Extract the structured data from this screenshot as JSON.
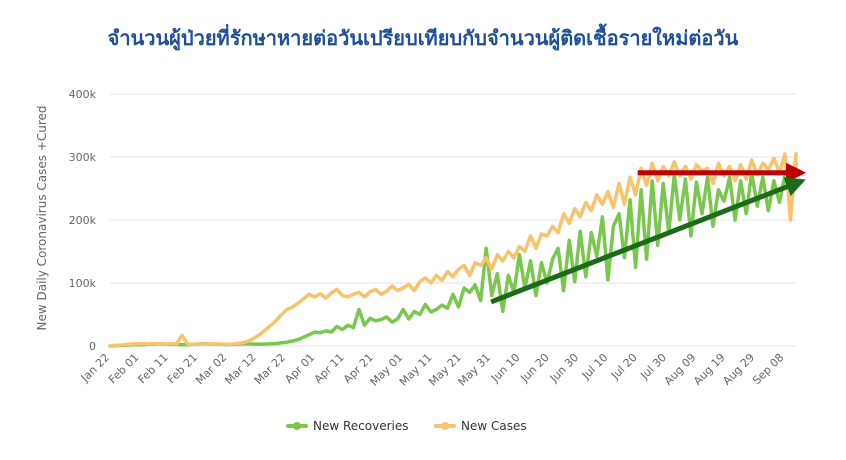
{
  "title": "จำนวนผู้ป่วยที่รักษาหายต่อวันเปรียบเทียบกับจำนวนผู้ติดเชื้อรายใหม่ต่อวัน",
  "colors": {
    "title": "#1f4e9a",
    "recoveries": "#7ac74f",
    "cases": "#f7c36b",
    "trend_cases": "#c00000",
    "trend_recoveries": "#1b6b1b",
    "grid": "#e6e6e6"
  },
  "chart_data": {
    "type": "line",
    "ylabel": "New Daily Coronavirus Cases +Cured",
    "ylim": [
      0,
      400000
    ],
    "y_ticks": [
      0,
      100000,
      200000,
      300000,
      400000
    ],
    "y_tick_labels": [
      "0",
      "100k",
      "200k",
      "300k",
      "400k"
    ],
    "x_tick_labels": [
      "Jan 22",
      "Feb 01",
      "Feb 11",
      "Feb 21",
      "Mar 02",
      "Mar 12",
      "Mar 22",
      "Apr 01",
      "Apr 11",
      "Apr 21",
      "May 01",
      "May 11",
      "May 21",
      "May 31",
      "Jun 10",
      "Jun 20",
      "Jun 30",
      "Jul 10",
      "Jul 20",
      "Jul 30",
      "Aug 09",
      "Aug 19",
      "Aug 29",
      "Sep 08"
    ],
    "x_start": "Jan 22",
    "x_end": "Sep 12",
    "grid": true,
    "legend_position": "bottom",
    "series": [
      {
        "name": "New Recoveries",
        "color": "#7ac74f",
        "values": [
          0,
          500,
          1000,
          1500,
          2000,
          2000,
          2000,
          2500,
          3000,
          3500,
          3000,
          2500,
          2500,
          2000,
          2000,
          2500,
          3000,
          3500,
          3000,
          3000,
          3000,
          2000,
          2500,
          3000,
          3500,
          3500,
          3000,
          3000,
          3000,
          3500,
          4000,
          5000,
          6000,
          8000,
          10000,
          14000,
          18000,
          22000,
          21000,
          24000,
          22000,
          31000,
          26000,
          33000,
          29000,
          58000,
          33000,
          44000,
          40000,
          42000,
          46000,
          38000,
          43000,
          58000,
          43000,
          55000,
          50000,
          66000,
          54000,
          58000,
          65000,
          60000,
          82000,
          62000,
          92000,
          85000,
          97000,
          72000,
          155000,
          80000,
          115000,
          55000,
          112000,
          85000,
          145000,
          92000,
          135000,
          80000,
          132000,
          100000,
          138000,
          155000,
          88000,
          168000,
          102000,
          182000,
          110000,
          180000,
          142000,
          205000,
          105000,
          190000,
          210000,
          140000,
          232000,
          125000,
          248000,
          138000,
          262000,
          160000,
          258000,
          180000,
          272000,
          200000,
          265000,
          175000,
          260000,
          210000,
          268000,
          190000,
          248000,
          230000,
          268000,
          200000,
          262000,
          210000,
          275000,
          222000,
          268000,
          215000,
          262000,
          228000,
          270000,
          240000,
          290000
        ]
      },
      {
        "name": "New Cases",
        "color": "#f7c36b",
        "values": [
          500,
          1000,
          1500,
          2500,
          3000,
          3500,
          4000,
          3000,
          4000,
          3500,
          3000,
          3500,
          3000,
          17000,
          3000,
          2500,
          3000,
          3000,
          3500,
          3000,
          3000,
          2500,
          3000,
          4000,
          5000,
          8000,
          12000,
          18000,
          25000,
          32000,
          40000,
          50000,
          58000,
          62000,
          68000,
          75000,
          82000,
          78000,
          83000,
          76000,
          84000,
          90000,
          80000,
          78000,
          82000,
          85000,
          78000,
          86000,
          90000,
          82000,
          87000,
          95000,
          88000,
          92000,
          98000,
          88000,
          102000,
          108000,
          100000,
          112000,
          104000,
          118000,
          110000,
          122000,
          128000,
          112000,
          132000,
          128000,
          140000,
          122000,
          145000,
          135000,
          150000,
          140000,
          158000,
          150000,
          175000,
          155000,
          178000,
          175000,
          190000,
          180000,
          210000,
          195000,
          218000,
          205000,
          228000,
          215000,
          240000,
          225000,
          245000,
          220000,
          258000,
          225000,
          268000,
          240000,
          282000,
          255000,
          290000,
          262000,
          285000,
          270000,
          292000,
          270000,
          285000,
          265000,
          288000,
          278000,
          282000,
          258000,
          290000,
          270000,
          285000,
          262000,
          288000,
          265000,
          295000,
          272000,
          290000,
          280000,
          298000,
          275000,
          305000,
          200000,
          305000
        ]
      }
    ],
    "annotations": [
      {
        "type": "arrow",
        "color": "#c00000",
        "from": [
          "Jul 20",
          275000
        ],
        "to": [
          "Sep 12",
          275000
        ]
      },
      {
        "type": "arrow",
        "color": "#1b6b1b",
        "from": [
          "May 31",
          70000
        ],
        "to": [
          "Sep 12",
          262000
        ]
      }
    ]
  }
}
